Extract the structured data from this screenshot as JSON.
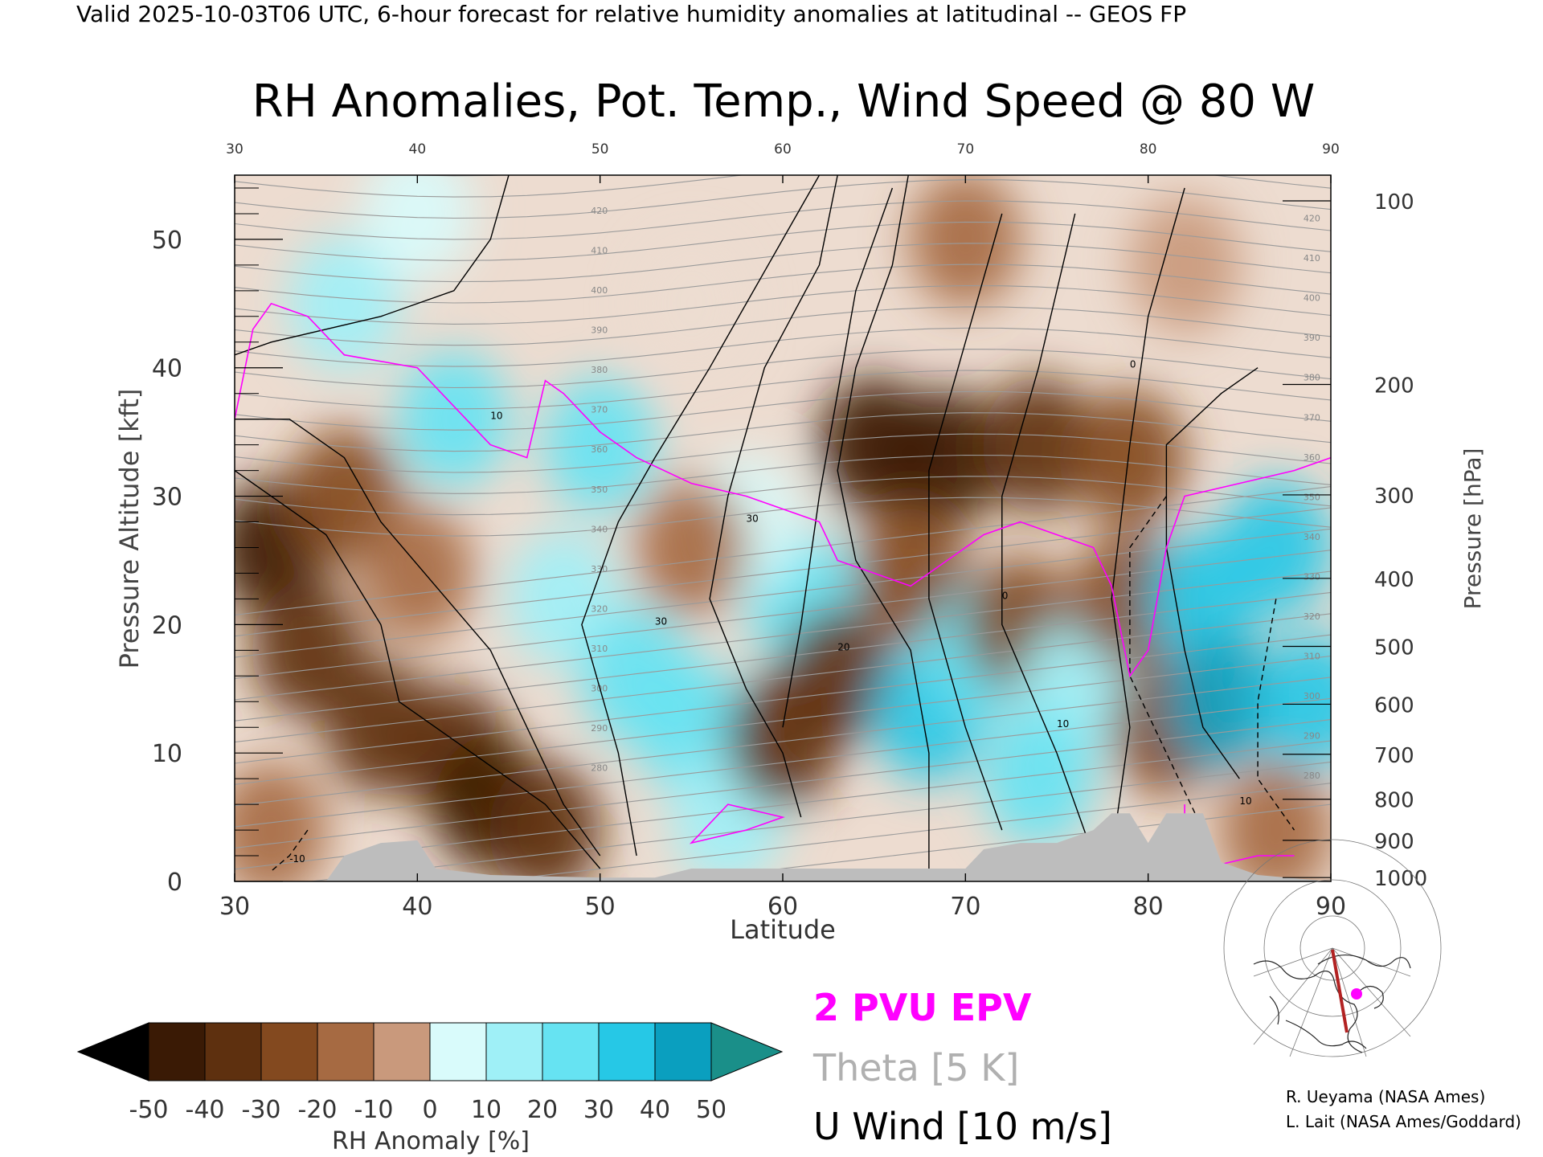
{
  "header": {
    "top_caption": "Valid 2025-10-03T06 UTC, 6-hour forecast for relative humidity anomalies at latitudinal -- GEOS FP",
    "title": "RH Anomalies, Pot. Temp., Wind Speed @ 80 W"
  },
  "chart_data": {
    "type": "heatmap",
    "title": "RH Anomalies, Pot. Temp., Wind Speed @ 80 W",
    "xlabel": "Latitude",
    "ylabel_left": "Pressure Altitude [kft]",
    "ylabel_right": "Pressure [hPa]",
    "xlim": [
      30,
      90
    ],
    "ylim": [
      0,
      55
    ],
    "x_ticks": [
      30,
      40,
      50,
      60,
      70,
      80,
      90
    ],
    "x_tick_labels": [
      "30",
      "40",
      "50",
      "60",
      "70",
      "80",
      "90"
    ],
    "y_ticks": [
      0,
      10,
      20,
      30,
      40,
      50
    ],
    "y_tick_labels": [
      "0",
      "10",
      "20",
      "30",
      "40",
      "50"
    ],
    "pressure_ticks": [
      {
        "hPa": "100",
        "kft": 53.0
      },
      {
        "hPa": "200",
        "kft": 38.7
      },
      {
        "hPa": "300",
        "kft": 30.1
      },
      {
        "hPa": "400",
        "kft": 23.6
      },
      {
        "hPa": "500",
        "kft": 18.3
      },
      {
        "hPa": "600",
        "kft": 13.8
      },
      {
        "hPa": "700",
        "kft": 9.9
      },
      {
        "hPa": "800",
        "kft": 6.4
      },
      {
        "hPa": "900",
        "kft": 3.2
      },
      {
        "hPa": "1000",
        "kft": 0.3
      }
    ],
    "grid": false,
    "colormap": {
      "label": "RH Anomaly [%]",
      "ticks": [
        "-50",
        "-40",
        "-30",
        "-20",
        "-10",
        "0",
        "10",
        "20",
        "30",
        "40",
        "50"
      ],
      "under_color": "#000000",
      "over_color": "#1a8f89",
      "colors": [
        "#3a1a05",
        "#5e300f",
        "#83491f",
        "#a66a42",
        "#c9997c",
        "#eddcd0",
        "#d9fbfb",
        "#9ff0f7",
        "#66e3f2",
        "#26c8e6",
        "#0a9fbf"
      ]
    },
    "rh_anomaly_blobs": [
      {
        "lat": 32,
        "kft": 26,
        "value": -45
      },
      {
        "lat": 34,
        "kft": 18,
        "value": -40
      },
      {
        "lat": 38,
        "kft": 12,
        "value": -40
      },
      {
        "lat": 42,
        "kft": 10,
        "value": -38
      },
      {
        "lat": 44,
        "kft": 6,
        "value": -45
      },
      {
        "lat": 47,
        "kft": 4,
        "value": -35
      },
      {
        "lat": 36,
        "kft": 30,
        "value": -30
      },
      {
        "lat": 40,
        "kft": 24,
        "value": -20
      },
      {
        "lat": 32,
        "kft": 4,
        "value": -15
      },
      {
        "lat": 36,
        "kft": 45,
        "value": 25
      },
      {
        "lat": 42,
        "kft": 36,
        "value": 30
      },
      {
        "lat": 50,
        "kft": 34,
        "value": 35
      },
      {
        "lat": 48,
        "kft": 22,
        "value": 25
      },
      {
        "lat": 52,
        "kft": 16,
        "value": 30
      },
      {
        "lat": 55,
        "kft": 12,
        "value": 35
      },
      {
        "lat": 57,
        "kft": 5,
        "value": 25
      },
      {
        "lat": 61,
        "kft": 22,
        "value": 30
      },
      {
        "lat": 58,
        "kft": 28,
        "value": 10
      },
      {
        "lat": 55,
        "kft": 26,
        "value": -15
      },
      {
        "lat": 60,
        "kft": 11,
        "value": -40
      },
      {
        "lat": 63,
        "kft": 16,
        "value": -35
      },
      {
        "lat": 65,
        "kft": 34,
        "value": -45
      },
      {
        "lat": 69,
        "kft": 33,
        "value": -45
      },
      {
        "lat": 74,
        "kft": 34,
        "value": -40
      },
      {
        "lat": 79,
        "kft": 33,
        "value": -30
      },
      {
        "lat": 67,
        "kft": 24,
        "value": -30
      },
      {
        "lat": 68,
        "kft": 13,
        "value": 45
      },
      {
        "lat": 71,
        "kft": 18,
        "value": 35
      },
      {
        "lat": 73,
        "kft": 20,
        "value": -30
      },
      {
        "lat": 76,
        "kft": 15,
        "value": 20
      },
      {
        "lat": 74,
        "kft": 8,
        "value": 30
      },
      {
        "lat": 79,
        "kft": 22,
        "value": -30
      },
      {
        "lat": 81,
        "kft": 12,
        "value": -25
      },
      {
        "lat": 83,
        "kft": 22,
        "value": 45
      },
      {
        "lat": 87,
        "kft": 26,
        "value": 45
      },
      {
        "lat": 84,
        "kft": 14,
        "value": 50
      },
      {
        "lat": 89,
        "kft": 14,
        "value": 45
      },
      {
        "lat": 87,
        "kft": 4,
        "value": -20
      },
      {
        "lat": 70,
        "kft": 50,
        "value": -12
      },
      {
        "lat": 82,
        "kft": 48,
        "value": -10
      },
      {
        "lat": 40,
        "kft": 52,
        "value": 15
      },
      {
        "lat": 55,
        "kft": 45,
        "value": 5
      }
    ],
    "theta_contour_labels": [
      "420",
      "410",
      "400",
      "390",
      "380",
      "370",
      "360",
      "350",
      "340",
      "330",
      "320",
      "310",
      "300",
      "290",
      "280"
    ],
    "u_wind_contour_labels": [
      "-10",
      "0",
      "10",
      "20",
      "30"
    ],
    "terrain": [
      {
        "lat": 30,
        "kft": 0
      },
      {
        "lat": 35,
        "kft": 0
      },
      {
        "lat": 36,
        "kft": 2
      },
      {
        "lat": 38,
        "kft": 3
      },
      {
        "lat": 40,
        "kft": 3.2
      },
      {
        "lat": 41,
        "kft": 1
      },
      {
        "lat": 44,
        "kft": 0.5
      },
      {
        "lat": 50,
        "kft": 0.3
      },
      {
        "lat": 53,
        "kft": 0.3
      },
      {
        "lat": 55,
        "kft": 1
      },
      {
        "lat": 60,
        "kft": 1
      },
      {
        "lat": 65,
        "kft": 1
      },
      {
        "lat": 70,
        "kft": 1
      },
      {
        "lat": 71,
        "kft": 2.5
      },
      {
        "lat": 73,
        "kft": 3
      },
      {
        "lat": 75,
        "kft": 3
      },
      {
        "lat": 77,
        "kft": 4
      },
      {
        "lat": 78,
        "kft": 5.3
      },
      {
        "lat": 79,
        "kft": 5.3
      },
      {
        "lat": 80,
        "kft": 3
      },
      {
        "lat": 81,
        "kft": 5.3
      },
      {
        "lat": 83,
        "kft": 5.3
      },
      {
        "lat": 84,
        "kft": 1.5
      },
      {
        "lat": 86,
        "kft": 0.5
      },
      {
        "lat": 90,
        "kft": 0
      }
    ]
  },
  "legend": {
    "epv_label": "2 PVU EPV",
    "theta_label": "Theta [5 K]",
    "wind_label": "U Wind [10 m/s]",
    "epv_color": "#ff00ff",
    "theta_color": "#b0b0b0",
    "wind_color": "#000000"
  },
  "credits": {
    "line1": "R. Ueyama (NASA Ames)",
    "line2": "L. Lait (NASA Ames/Goddard)"
  }
}
